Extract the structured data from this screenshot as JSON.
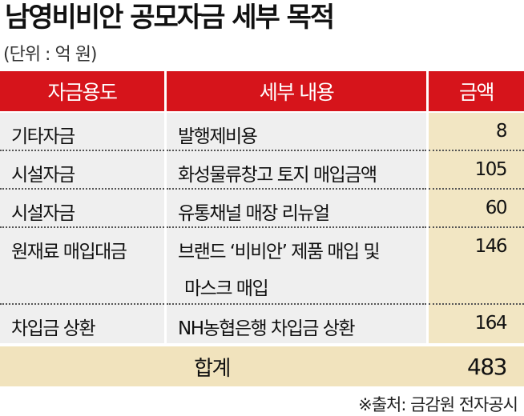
{
  "title": "남영비비안 공모자금 세부 목적",
  "unit": "(단위 : 억 원)",
  "table": {
    "headers": [
      "자금용도",
      "세부 내용",
      "금액"
    ],
    "rows": [
      {
        "use": "기타자금",
        "detail": "발행제비용",
        "detail2": "",
        "amount": "8"
      },
      {
        "use": "시설자금",
        "detail": "화성물류창고 토지 매입금액",
        "detail2": "",
        "amount": "105"
      },
      {
        "use": "시설자금",
        "detail": "유통채널 매장 리뉴얼",
        "detail2": "",
        "amount": "60"
      },
      {
        "use": "원재료 매입대금",
        "detail": "브랜드 ‘비비안’ 제품 매입 및",
        "detail2": "마스크 매입",
        "amount": "146"
      },
      {
        "use": "차입금 상환",
        "detail": "NH농협은행 차입금 상환",
        "detail2": "",
        "amount": "164"
      }
    ],
    "total_label": "합계",
    "total_value": "483"
  },
  "source": "※출처: 금감원 전자공시",
  "colors": {
    "header": "#d6141b",
    "row": "#efefef",
    "amount": "#f2e6c3"
  }
}
